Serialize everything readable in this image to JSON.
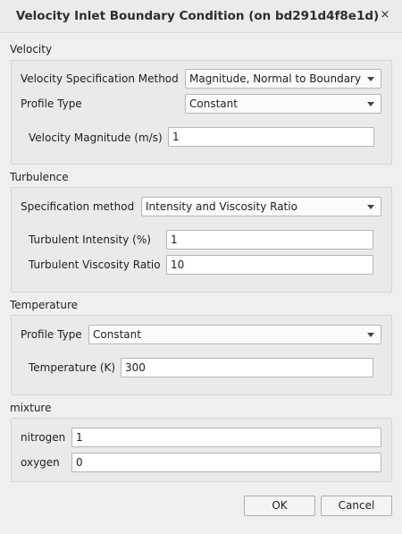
{
  "dialog": {
    "title": "Velocity Inlet Boundary Condition (on bd291d4f8e1d)",
    "close_glyph": "×"
  },
  "velocity": {
    "section": "Velocity",
    "spec_method_label": "Velocity Specification Method",
    "spec_method_value": "Magnitude, Normal to Boundary",
    "profile_label": "Profile Type",
    "profile_value": "Constant",
    "magnitude_label": "Velocity Magnitude (m/s)",
    "magnitude_value": "1"
  },
  "turbulence": {
    "section": "Turbulence",
    "spec_method_label": "Specification method",
    "spec_method_value": "Intensity and Viscosity Ratio",
    "intensity_label": "Turbulent Intensity (%)",
    "intensity_value": "1",
    "viscosity_label": "Turbulent Viscosity Ratio",
    "viscosity_value": "10"
  },
  "temperature": {
    "section": "Temperature",
    "profile_label": "Profile Type",
    "profile_value": "Constant",
    "temp_label": "Temperature (K)",
    "temp_value": "300"
  },
  "mixture": {
    "section": "mixture",
    "nitrogen_label": "nitrogen",
    "nitrogen_value": "1",
    "oxygen_label": "oxygen",
    "oxygen_value": "0"
  },
  "buttons": {
    "ok": "OK",
    "cancel": "Cancel"
  },
  "icons": {
    "close": "close-icon",
    "dropdown": "chevron-down-icon"
  }
}
